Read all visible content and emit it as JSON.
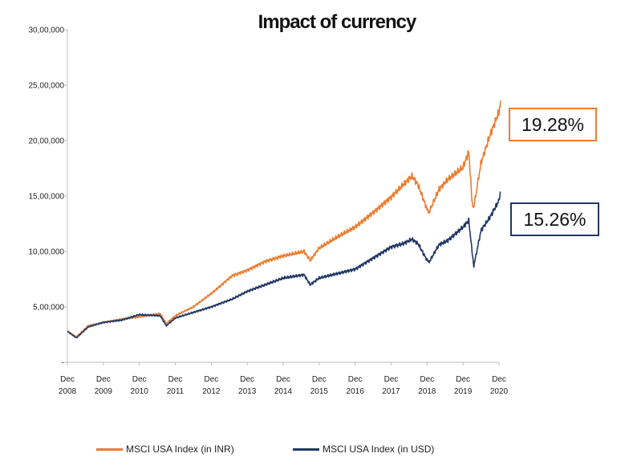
{
  "chart_data": {
    "type": "line",
    "title": "Impact of currency",
    "xlabel": "",
    "ylabel": "",
    "ylim": [
      0,
      3000000
    ],
    "y_ticks": [
      "30,00,000",
      "25,00,000",
      "20,00,000",
      "15,00,000",
      "10,00,000",
      "5,00,000",
      "-"
    ],
    "x_ticks": [
      {
        "top": "Dec",
        "bottom": "2008"
      },
      {
        "top": "Dec",
        "bottom": "2009"
      },
      {
        "top": "Dec",
        "bottom": "2010"
      },
      {
        "top": "Dec",
        "bottom": "2011"
      },
      {
        "top": "Dec",
        "bottom": "2012"
      },
      {
        "top": "Dec",
        "bottom": "2013"
      },
      {
        "top": "Dec",
        "bottom": "2014"
      },
      {
        "top": "Dec",
        "bottom": "2015"
      },
      {
        "top": "Dec",
        "bottom": "2016"
      },
      {
        "top": "Dec",
        "bottom": "2017"
      },
      {
        "top": "Dec",
        "bottom": "2018"
      },
      {
        "top": "Dec",
        "bottom": "2019"
      },
      {
        "top": "Dec",
        "bottom": "2020"
      }
    ],
    "grid": false,
    "legend_position": "bottom",
    "series": [
      {
        "name": "MSCI USA Index (in INR)",
        "color": "#ed7d31",
        "x": [
          2008.92,
          2009.17,
          2009.5,
          2009.92,
          2010.42,
          2010.92,
          2011.5,
          2011.67,
          2011.92,
          2012.42,
          2012.92,
          2013.5,
          2013.92,
          2014.42,
          2014.92,
          2015.5,
          2015.67,
          2015.92,
          2016.42,
          2016.92,
          2017.42,
          2017.92,
          2018.25,
          2018.5,
          2018.67,
          2018.92,
          2018.97,
          2019.25,
          2019.5,
          2019.92,
          2020.08,
          2020.17,
          2020.22,
          2020.42,
          2020.67,
          2020.92,
          2020.96
        ],
        "y": [
          280000,
          230000,
          330000,
          360000,
          390000,
          410000,
          440000,
          350000,
          420000,
          500000,
          620000,
          780000,
          830000,
          910000,
          960000,
          1000000,
          920000,
          1030000,
          1130000,
          1220000,
          1350000,
          1490000,
          1600000,
          1680000,
          1600000,
          1380000,
          1350000,
          1560000,
          1650000,
          1760000,
          1900000,
          1450000,
          1400000,
          1800000,
          2050000,
          2260000,
          2360000
        ]
      },
      {
        "name": "MSCI USA Index (in USD)",
        "color": "#203864",
        "x": [
          2008.92,
          2009.17,
          2009.5,
          2009.92,
          2010.42,
          2010.92,
          2011.5,
          2011.67,
          2011.92,
          2012.42,
          2012.92,
          2013.5,
          2013.92,
          2014.42,
          2014.92,
          2015.5,
          2015.67,
          2015.92,
          2016.42,
          2016.92,
          2017.42,
          2017.92,
          2018.25,
          2018.5,
          2018.67,
          2018.92,
          2018.97,
          2019.25,
          2019.5,
          2019.92,
          2020.08,
          2020.17,
          2020.22,
          2020.42,
          2020.67,
          2020.92,
          2020.96
        ],
        "y": [
          280000,
          220000,
          320000,
          360000,
          380000,
          430000,
          420000,
          330000,
          400000,
          450000,
          500000,
          570000,
          640000,
          700000,
          760000,
          790000,
          700000,
          760000,
          800000,
          840000,
          940000,
          1040000,
          1070000,
          1110000,
          1070000,
          920000,
          900000,
          1060000,
          1100000,
          1220000,
          1280000,
          1000000,
          870000,
          1190000,
          1310000,
          1460000,
          1540000
        ]
      }
    ],
    "annotations": [
      {
        "text": "19.28%",
        "series": "MSCI USA Index (in INR)",
        "border_color": "#ed7d31"
      },
      {
        "text": "15.26%",
        "series": "MSCI USA Index (in USD)",
        "border_color": "#203864"
      }
    ]
  }
}
